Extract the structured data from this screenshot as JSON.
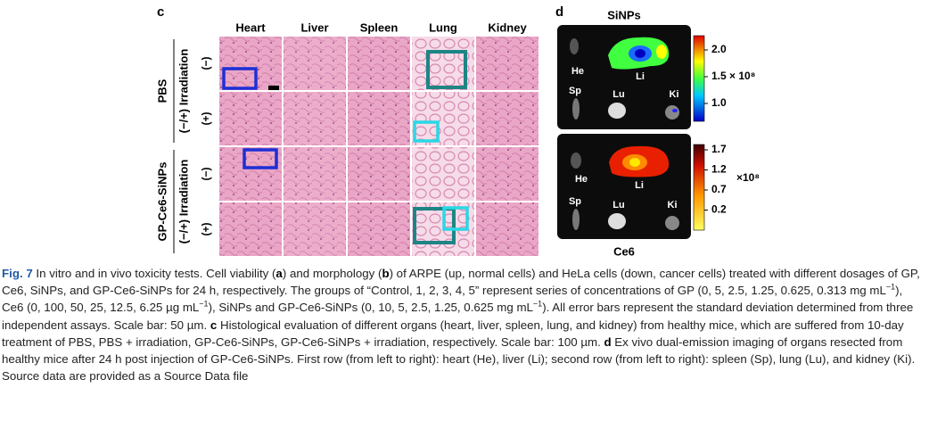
{
  "panel_c": {
    "label": "c",
    "columns": [
      "Heart",
      "Liver",
      "Spleen",
      "Lung",
      "Kidney"
    ],
    "groups": [
      {
        "name": "PBS",
        "condition": "(−/+) Irradiation",
        "rows": [
          "(−)",
          "(+)"
        ]
      },
      {
        "name": "GP-Ce6-SiNPs",
        "condition": "(−/+) Irradiation",
        "rows": [
          "(−)",
          "(+)"
        ]
      }
    ]
  },
  "panel_d": {
    "label": "d",
    "top": {
      "title": "SiNPs",
      "ticks": [
        "2.0",
        "1.5 × 10⁸",
        "1.0"
      ]
    },
    "bottom": {
      "title": "Ce6",
      "ticks": [
        "1.7",
        "1.2",
        "0.7",
        "0.2"
      ],
      "unit": "×10⁸"
    },
    "organs": [
      "He",
      "Li",
      "Sp",
      "Lu",
      "Ki"
    ]
  },
  "caption": {
    "parts": [
      "Fig. 7",
      " In vitro and in vivo toxicity tests. Cell viability (",
      "a",
      ") and morphology (",
      "b",
      ") of ARPE (up, normal cells) and HeLa cells (down, cancer cells) treated with different dosages of GP, Ce6, SiNPs, and GP-Ce6-SiNPs for 24 h, respectively. The groups of “Control, 1, 2, 3, 4, 5” represent series of concentrations of GP (0, 5, 2.5, 1.25, 0.625, 0.313 mg mL",
      "−1",
      "), Ce6 (0, 100, 50, 25, 12.5, 6.25 µg mL",
      "−1",
      "), SiNPs and GP-Ce6-SiNPs (0, 10, 5, 2.5, 1.25, 0.625 mg mL",
      "−1",
      "). All error bars represent the standard deviation determined from three independent assays. Scale bar: 50 µm. ",
      "c",
      " Histological evaluation of different organs (heart, liver, spleen, lung, and kidney) from healthy mice, which are suffered from 10-day treatment of PBS, PBS + irradiation, GP-Ce6-SiNPs, GP-Ce6-SiNPs + irradiation, respectively. Scale bar: 100 µm. ",
      "d",
      " Ex vivo dual-emission imaging of organs resected from healthy mice after 24 h post injection of GP-Ce6-SiNPs. First row (from left to right): heart (He), liver (Li); second row (from left to right): spleen (Sp), lung (Lu), and kidney (Ki). Source data are provided as a Source Data file"
    ]
  }
}
